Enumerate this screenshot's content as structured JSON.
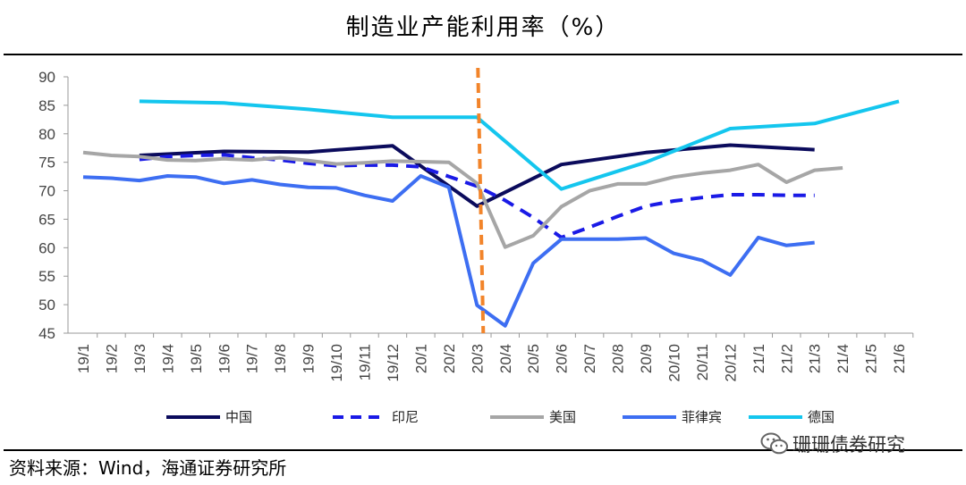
{
  "title": "制造业产能利用率（%）",
  "source": "资料来源：Wind，海通证券研究所",
  "watermark": {
    "text": "珊珊债券研究",
    "icon": "wechat-icon"
  },
  "colors": {
    "中国": "#0b0b5c",
    "印尼": "#1a1ae6",
    "美国": "#a6a6a6",
    "菲律宾": "#3d6ef2",
    "德国": "#14c6ee",
    "marker": "#f2842a",
    "axis": "#999999"
  },
  "chart_data": {
    "type": "line",
    "title": "制造业产能利用率（%）",
    "xlabel": "",
    "ylabel": "",
    "ylim": [
      45,
      90
    ],
    "yticks": [
      45,
      50,
      55,
      60,
      65,
      70,
      75,
      80,
      85,
      90
    ],
    "categories": [
      "19/1",
      "19/2",
      "19/3",
      "19/4",
      "19/5",
      "19/6",
      "19/7",
      "19/8",
      "19/9",
      "19/10",
      "19/11",
      "19/12",
      "20/1",
      "20/2",
      "20/3",
      "20/4",
      "20/5",
      "20/6",
      "20/7",
      "20/8",
      "20/9",
      "20/10",
      "20/11",
      "20/12",
      "21/1",
      "21/2",
      "21/3",
      "21/4",
      "21/5",
      "21/6"
    ],
    "vertical_marker": "20/3",
    "legend_position": "bottom",
    "series": [
      {
        "name": "中国",
        "style": "solid",
        "values": [
          null,
          null,
          76.2,
          null,
          null,
          76.9,
          null,
          null,
          76.8,
          null,
          null,
          77.9,
          null,
          null,
          67.3,
          null,
          null,
          74.6,
          null,
          null,
          76.7,
          null,
          null,
          78.0,
          null,
          null,
          77.2,
          null,
          null,
          null
        ]
      },
      {
        "name": "印尼",
        "style": "dashed",
        "values": [
          null,
          null,
          75.5,
          76.0,
          76.2,
          76.3,
          75.8,
          75.4,
          74.8,
          74.4,
          74.5,
          74.5,
          74.2,
          72.5,
          70.8,
          68.3,
          65.3,
          61.8,
          63.6,
          65.5,
          67.3,
          68.2,
          68.8,
          69.3,
          69.3,
          69.2,
          69.2,
          null,
          null,
          null
        ]
      },
      {
        "name": "美国",
        "style": "solid",
        "values": [
          76.7,
          76.2,
          76.0,
          75.4,
          75.3,
          75.6,
          75.4,
          75.8,
          75.3,
          74.7,
          74.9,
          75.2,
          75.1,
          75.0,
          71.3,
          60.1,
          62.1,
          67.2,
          70.0,
          71.2,
          71.2,
          72.4,
          73.1,
          73.6,
          74.6,
          71.5,
          73.6,
          74.0,
          null,
          null
        ]
      },
      {
        "name": "菲律宾",
        "style": "solid",
        "values": [
          72.4,
          72.2,
          71.8,
          72.6,
          72.4,
          71.3,
          71.9,
          71.1,
          70.6,
          70.5,
          69.2,
          68.2,
          72.6,
          70.6,
          49.9,
          46.3,
          57.3,
          61.5,
          61.5,
          61.5,
          61.7,
          59.0,
          57.8,
          55.2,
          61.8,
          60.4,
          60.9,
          null,
          null,
          null
        ]
      },
      {
        "name": "德国",
        "style": "solid",
        "values": [
          null,
          null,
          85.7,
          null,
          null,
          85.4,
          null,
          null,
          84.3,
          null,
          null,
          82.9,
          null,
          null,
          82.9,
          null,
          null,
          70.3,
          null,
          null,
          75.0,
          null,
          null,
          80.9,
          null,
          null,
          81.8,
          null,
          null,
          85.7
        ]
      }
    ]
  }
}
